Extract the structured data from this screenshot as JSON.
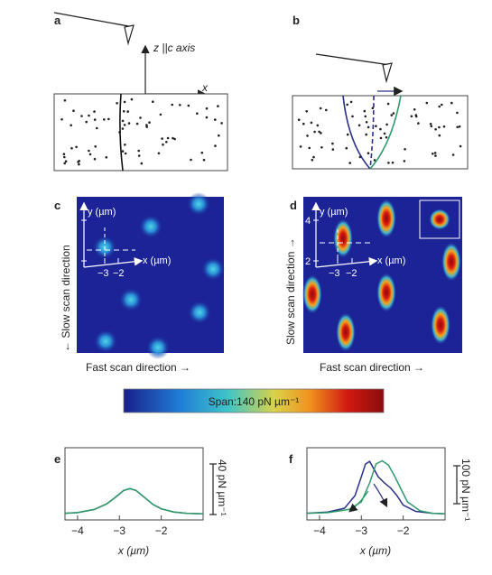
{
  "panels": {
    "a": "a",
    "b": "b",
    "c": "c",
    "d": "d",
    "e": "e",
    "f": "f"
  },
  "panel_a": {
    "z_axis_label": "z ||c axis",
    "x_axis_label": "x"
  },
  "maps": {
    "y_label": "y (µm)",
    "x_label": "x (µm)",
    "y_ticks": [
      "4",
      "2"
    ],
    "x_ticks": [
      "−3",
      "−2"
    ],
    "slow_scan_c": "← Slow scan direction",
    "slow_scan_d": "Slow scan direction →",
    "fast_scan": "Fast scan direction →"
  },
  "colorbar": {
    "label": "Span:140 pN µm⁻¹",
    "colors": [
      "#1a1f8a",
      "#1f7fd6",
      "#3fc4c8",
      "#d9d24a",
      "#f0901e",
      "#d01a10",
      "#8a0d0d"
    ]
  },
  "chart_data": [
    {
      "type": "line",
      "panel": "e",
      "xlabel": "x (µm)",
      "x_ticks": [
        "−4",
        "−3",
        "−2"
      ],
      "xlim": [
        -4.3,
        -1.0
      ],
      "scale_bar": "40 pN µm⁻¹",
      "series": [
        {
          "color": "#3a4a9a",
          "x": [
            -4.3,
            -4.0,
            -3.6,
            -3.3,
            -3.1,
            -2.9,
            -2.75,
            -2.6,
            -2.4,
            -2.2,
            -2.0,
            -1.7,
            -1.4,
            -1.0
          ],
          "y": [
            2,
            3,
            8,
            17,
            27,
            38,
            41,
            38,
            27,
            16,
            9,
            4,
            2,
            1
          ]
        },
        {
          "color": "#2f9a66",
          "x": [
            -4.3,
            -4.0,
            -3.6,
            -3.3,
            -3.1,
            -2.9,
            -2.75,
            -2.6,
            -2.4,
            -2.2,
            -2.0,
            -1.7,
            -1.4,
            -1.0
          ],
          "y": [
            2,
            3,
            8,
            17,
            27,
            38,
            41,
            38,
            27,
            16,
            9,
            4,
            2,
            1
          ]
        }
      ]
    },
    {
      "type": "line",
      "panel": "f",
      "xlabel": "x (µm)",
      "x_ticks": [
        "−4",
        "−3",
        "−2"
      ],
      "xlim": [
        -4.3,
        -1.0
      ],
      "scale_bar": "100 pN µm⁻¹",
      "series": [
        {
          "color": "#2a2f8a",
          "x": [
            -4.3,
            -3.8,
            -3.4,
            -3.15,
            -3.0,
            -2.9,
            -2.8,
            -2.7,
            -2.6,
            -2.45,
            -2.3,
            -2.15,
            -2.0,
            -1.7,
            -1.3,
            -1.0
          ],
          "y": [
            2,
            4,
            10,
            30,
            60,
            80,
            84,
            72,
            60,
            50,
            42,
            30,
            15,
            5,
            2,
            1
          ]
        },
        {
          "color": "#2e9a6a",
          "x": [
            -4.3,
            -3.8,
            -3.3,
            -3.0,
            -2.8,
            -2.65,
            -2.5,
            -2.35,
            -2.2,
            -2.05,
            -1.9,
            -1.6,
            -1.3,
            -1.0
          ],
          "y": [
            2,
            3,
            8,
            20,
            50,
            80,
            85,
            78,
            60,
            40,
            20,
            6,
            2,
            1
          ]
        }
      ]
    }
  ]
}
